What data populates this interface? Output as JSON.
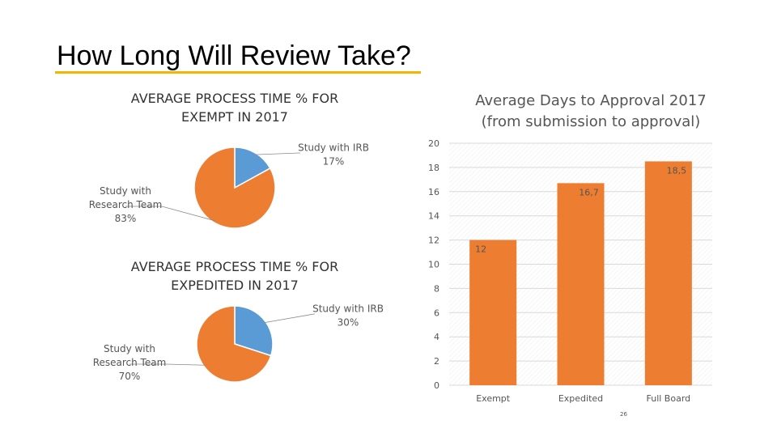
{
  "slide": {
    "title": "How Long Will Review Take?",
    "page_number": "26",
    "accent_color": "#f5b400"
  },
  "chart_data": [
    {
      "type": "pie",
      "title": "AVERAGE PROCESS TIME % FOR EXEMPT IN 2017",
      "title_lines": [
        "AVERAGE PROCESS TIME % FOR",
        "EXEMPT IN 2017"
      ],
      "slices": [
        {
          "name": "Study with IRB",
          "value": 17,
          "label_lines": [
            "Study with IRB",
            "17%"
          ],
          "color": "#5b9bd5"
        },
        {
          "name": "Study with Research Team",
          "value": 83,
          "label_lines": [
            "Study with",
            "Research Team",
            "83%"
          ],
          "color": "#ed7d31"
        }
      ]
    },
    {
      "type": "pie",
      "title": "AVERAGE PROCESS TIME % FOR EXPEDITED IN 2017",
      "title_lines": [
        "AVERAGE PROCESS TIME % FOR",
        "EXPEDITED IN 2017"
      ],
      "slices": [
        {
          "name": "Study with IRB",
          "value": 30,
          "label_lines": [
            "Study with IRB",
            "30%"
          ],
          "color": "#5b9bd5"
        },
        {
          "name": "Study with Research Team",
          "value": 70,
          "label_lines": [
            "Study with",
            "Research Team",
            "70%"
          ],
          "color": "#ed7d31"
        }
      ]
    },
    {
      "type": "bar",
      "title": "Average Days to Approval 2017 (from submission to approval)",
      "title_lines": [
        "Average Days to Approval 2017",
        "(from submission to approval)"
      ],
      "categories": [
        "Exempt",
        "Expedited",
        "Full Board"
      ],
      "values": [
        12,
        16.7,
        18.5
      ],
      "value_labels": [
        "12",
        "16,7",
        "18,5"
      ],
      "ylim": [
        0,
        20
      ],
      "yticks": [
        0,
        2,
        4,
        6,
        8,
        10,
        12,
        14,
        16,
        18,
        20
      ],
      "grid": true,
      "bar_color": "#ed7d31"
    }
  ]
}
